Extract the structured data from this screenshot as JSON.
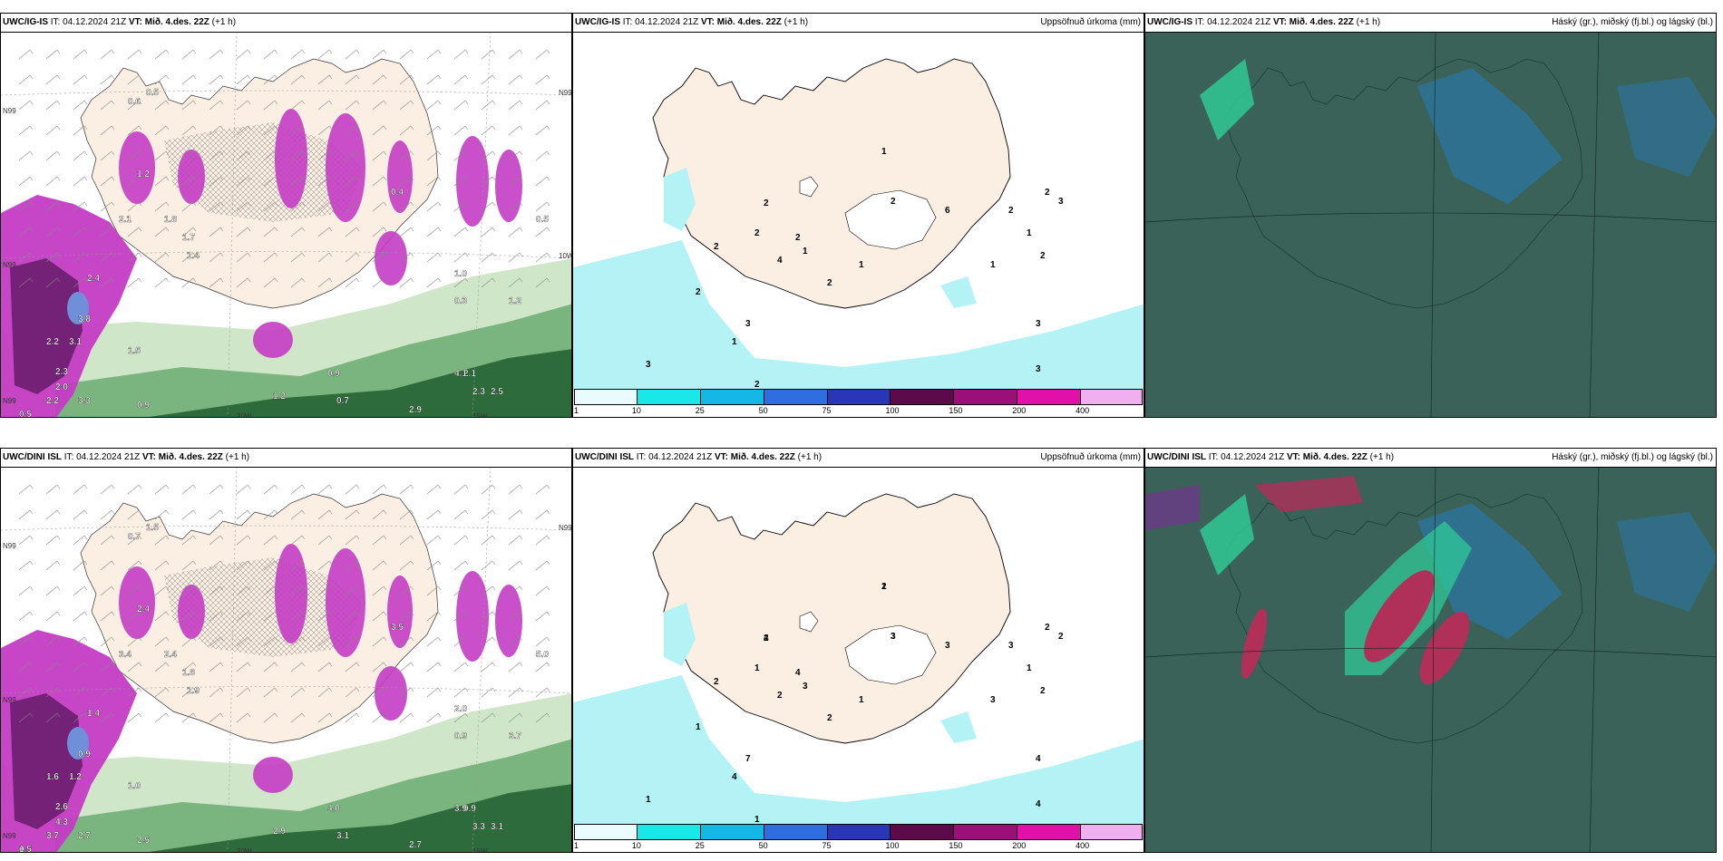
{
  "panels": [
    {
      "id": "tl",
      "model": "UWC/IG-IS",
      "it": "04.12.2024 21Z",
      "vt_label": "VT:",
      "vt": "Mið. 4.des. 22Z",
      "step": "(+1 h)",
      "right_title": "",
      "type": "precip_rate",
      "labels": [
        "0.5",
        "0.6",
        "0.5",
        "1.2",
        "2.1",
        "1.8",
        "1.7",
        "1.4",
        "2.4",
        "3.8",
        "2.2",
        "3.1",
        "2.3",
        "2.0",
        "2.2",
        "3.3",
        "1.5",
        "0.9",
        "1.2",
        "0.7",
        "2.9",
        "2.1",
        "2.3",
        "2.5",
        "4.1",
        "0.9",
        "0.4",
        "1.0",
        "0.3",
        "1.2",
        "0.5"
      ],
      "axis_labels": [
        "N99",
        "N99",
        "N99",
        "20W",
        "15W",
        "N99",
        "10W"
      ]
    },
    {
      "id": "tm",
      "model": "UWC/IG-IS",
      "it": "04.12.2024 21Z",
      "vt_label": "VT:",
      "vt": "Mið. 4.des. 22Z",
      "step": "(+1 h)",
      "right_title": "Uppsöfnuð úrkoma (mm)",
      "type": "accum",
      "labels": [
        "1",
        "2",
        "2",
        "2",
        "2",
        "1",
        "2",
        "2",
        "3",
        "1",
        "3",
        "4",
        "2",
        "1",
        "6",
        "2",
        "1",
        "2",
        "2",
        "3",
        "1",
        "3",
        "3",
        "2"
      ]
    },
    {
      "id": "tr",
      "model": "UWC/IG-IS",
      "it": "04.12.2024 21Z",
      "vt_label": "VT:",
      "vt": "Mið. 4.des. 22Z",
      "step": "(+1 h)",
      "right_title": "Háský (gr.), miðský (fj.bl.) og lágský (bl.)",
      "type": "cloud"
    },
    {
      "id": "bl",
      "model": "UWC/DINI ISL",
      "it": "04.12.2024 21Z",
      "vt_label": "VT:",
      "vt": "Mið. 4.des. 22Z",
      "step": "(+1 h)",
      "right_title": "",
      "type": "precip_rate",
      "labels": [
        "0.5",
        "0.7",
        "1.5",
        "2.4",
        "3.4",
        "2.4",
        "1.8",
        "1.9",
        "1.4",
        "0.9",
        "1.6",
        "1.2",
        "2.6",
        "4.3",
        "3.7",
        "2.7",
        "1.0",
        "2.5",
        "2.9",
        "3.1",
        "2.7",
        "0.9",
        "3.3",
        "3.1",
        "3.9",
        "4.0",
        "3.5",
        "2.0",
        "0.9",
        "3.7",
        "5.0",
        "1.5"
      ],
      "axis_labels": [
        "N99",
        "N99",
        "N99",
        "20W",
        "15W",
        "N99"
      ]
    },
    {
      "id": "bm",
      "model": "UWC/DINI ISL",
      "it": "04.12.2024 21Z",
      "vt_label": "VT:",
      "vt": "Mið. 4.des. 22Z",
      "step": "(+1 h)",
      "right_title": "Uppsöfnuð úrkoma (mm)",
      "type": "accum",
      "labels": [
        "2",
        "3",
        "2",
        "1",
        "4",
        "3",
        "2",
        "1",
        "7",
        "4",
        "1",
        "2",
        "2",
        "1",
        "3",
        "3",
        "1",
        "2",
        "2",
        "2",
        "3",
        "4",
        "4",
        "1",
        "1",
        "3",
        "4"
      ]
    },
    {
      "id": "br",
      "model": "UWC/DINI ISL",
      "it": "04.12.2024 21Z",
      "vt_label": "VT:",
      "vt": "Mið. 4.des. 22Z",
      "step": "(+1 h)",
      "right_title": "Háský (gr.), miðský (fj.bl.) og lágský (bl.)",
      "type": "cloud"
    }
  ],
  "colorbar": {
    "ticks": [
      "1",
      "10",
      "25",
      "50",
      "75",
      "100",
      "150",
      "200",
      "400"
    ],
    "colors": [
      "#e9fbfc",
      "#19e8e8",
      "#13b8e6",
      "#2f6ee0",
      "#2a36b8",
      "#5c0a4a",
      "#9a1078",
      "#e010a8",
      "#f0b0f0"
    ]
  },
  "palette": {
    "land": "#fbeee2",
    "ocean_sea": "#ffffff",
    "cyan_light": "#b3f3f6",
    "precip_magenta": "#c43cc4",
    "precip_dark": "#6a1d6f",
    "green_dark": "#2e6b3a",
    "green_light": "#cfe6c8",
    "cloud_base": "#3a6258",
    "cloud_low": "#2b76a5",
    "cloud_mid": "#2fd09a",
    "cloud_high": "#b0305a"
  }
}
